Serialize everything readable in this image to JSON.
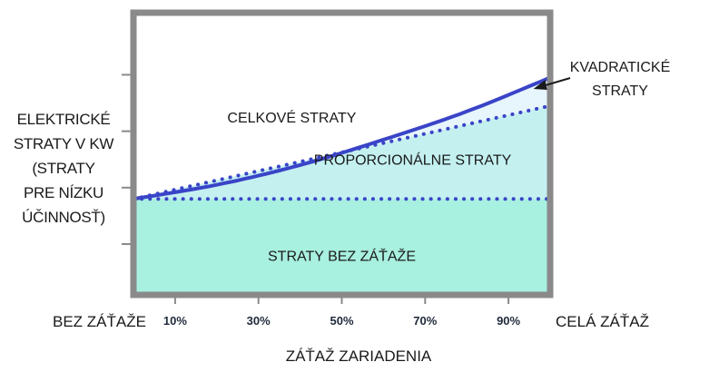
{
  "chart_data": {
    "type": "area",
    "title": "",
    "xlabel": "ZÁŤAŽ ZARIADENIA",
    "ylabel_lines": [
      "ELEKTRICKÉ",
      "STRATY V KW",
      "(STRATY",
      "PRE NÍZKU",
      "ÚČINNOSŤ)"
    ],
    "x_start_label": "BEZ ZÁŤAŽE",
    "x_end_label": "CELÁ ZÁŤAŽ",
    "xlim": [
      0,
      100
    ],
    "ylim": [
      0,
      10
    ],
    "x_ticks": [
      10,
      30,
      50,
      70,
      90
    ],
    "x_tick_labels": [
      "10%",
      "30%",
      "50%",
      "70%",
      "90%"
    ],
    "grid": false,
    "series": [
      {
        "name": "STRATY BEZ ZÁŤAŽE",
        "style": "dotted",
        "x": [
          0,
          100
        ],
        "y": [
          3.4,
          3.4
        ]
      },
      {
        "name": "PROPORCIONÁLNE STRATY",
        "style": "dotted",
        "x": [
          0,
          100
        ],
        "y": [
          3.4,
          6.7
        ]
      },
      {
        "name": "CELKOVÉ STRATY",
        "style": "solid",
        "x": [
          0,
          20,
          40,
          60,
          80,
          100
        ],
        "y": [
          3.4,
          3.9,
          4.6,
          5.5,
          6.5,
          7.7
        ]
      }
    ],
    "annotations": [
      {
        "text": "CELKOVÉ STRATY",
        "x": 38,
        "y": 6.3
      },
      {
        "text": "PROPORCIONÁLNE STRATY",
        "x": 67,
        "y": 4.8
      },
      {
        "text": "STRATY BEZ ZÁŤAŽE",
        "x": 50,
        "y": 1.4
      },
      {
        "text_lines": [
          "KVADRATICKÉ",
          "STRATY"
        ],
        "arrow_to": {
          "x": 96,
          "y": 7.3
        }
      }
    ],
    "colors": {
      "frame": "#8a8a8a",
      "line": "#3a44c8",
      "fill_base": "#a8f0e0",
      "fill_proportional": "#c4f0f0",
      "fill_quadratic": "#e6f6fc",
      "plot_bg": "#ffffff"
    }
  }
}
